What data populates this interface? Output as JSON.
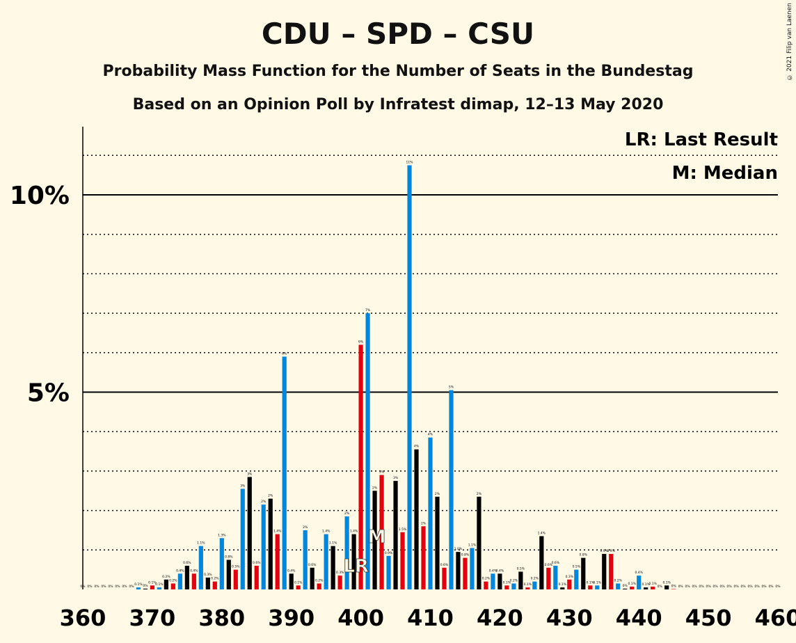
{
  "title": "CDU – SPD – CSU",
  "subtitle": "Probability Mass Function for the Number of Seats in the Bundestag",
  "subtitle2": "Based on an Opinion Poll by Infratest dimap, 12–13 May 2020",
  "copyright": "© 2021 Filip van Laenen",
  "chart_data": {
    "type": "bar",
    "title": "CDU – SPD – CSU",
    "xlabel": "",
    "ylabel": "",
    "xlim": [
      360,
      460
    ],
    "ylim": [
      0,
      11.7
    ],
    "x_ticks": [
      "360",
      "370",
      "380",
      "390",
      "400",
      "410",
      "420",
      "430",
      "440",
      "450",
      "460"
    ],
    "y_ticks": [
      {
        "value": 5,
        "label": "5%"
      },
      {
        "value": 10,
        "label": "10%"
      }
    ],
    "grid": "dotted every 1%, solid at 5% and 10%",
    "legend": [
      {
        "text": "LR: Last Result",
        "position": "top-right"
      },
      {
        "text": "M: Median",
        "position": "top-right"
      }
    ],
    "last_result_seat": 399,
    "median_seat": 402,
    "colors": {
      "blue": "#0087DC",
      "black": "#000000",
      "red": "#E3000F",
      "background": "#FFF9E6"
    },
    "bars": [
      {
        "seat": 360,
        "value": 0,
        "label": "0%",
        "color": "black"
      },
      {
        "seat": 361,
        "value": 0,
        "label": "0%",
        "color": "blue"
      },
      {
        "seat": 362,
        "value": 0,
        "label": "0%",
        "color": "black"
      },
      {
        "seat": 363,
        "value": 0,
        "label": "0%",
        "color": "black"
      },
      {
        "seat": 364,
        "value": 0,
        "label": "0%",
        "color": "black"
      },
      {
        "seat": 365,
        "value": 0,
        "label": "0%",
        "color": "black"
      },
      {
        "seat": 366,
        "value": 0,
        "label": "0%",
        "color": "black"
      },
      {
        "seat": 367,
        "value": 0,
        "label": "0%",
        "color": "black"
      },
      {
        "seat": 368,
        "value": 0.05,
        "label": "0.1%",
        "color": "blue"
      },
      {
        "seat": 369,
        "value": 0.02,
        "label": "0%",
        "color": "black"
      },
      {
        "seat": 370,
        "value": 0.1,
        "label": "0.1%",
        "color": "red"
      },
      {
        "seat": 371,
        "value": 0.05,
        "label": "0.1%",
        "color": "blue"
      },
      {
        "seat": 372,
        "value": 0.25,
        "label": "0.2%",
        "color": "black"
      },
      {
        "seat": 373,
        "value": 0.15,
        "label": "0.2%",
        "color": "red"
      },
      {
        "seat": 374,
        "value": 0.4,
        "label": "0.4%",
        "color": "blue"
      },
      {
        "seat": 375,
        "value": 0.6,
        "label": "0.6%",
        "color": "black"
      },
      {
        "seat": 376,
        "value": 0.4,
        "label": "0.4%",
        "color": "red"
      },
      {
        "seat": 377,
        "value": 1.1,
        "label": "1.1%",
        "color": "blue"
      },
      {
        "seat": 378,
        "value": 0.3,
        "label": "0.3%",
        "color": "black"
      },
      {
        "seat": 379,
        "value": 0.2,
        "label": "0.2%",
        "color": "red"
      },
      {
        "seat": 380,
        "value": 1.3,
        "label": "1.3%",
        "color": "blue"
      },
      {
        "seat": 381,
        "value": 0.75,
        "label": "0.8%",
        "color": "black"
      },
      {
        "seat": 382,
        "value": 0.5,
        "label": "0.5%",
        "color": "red"
      },
      {
        "seat": 383,
        "value": 2.55,
        "label": "3%",
        "color": "blue"
      },
      {
        "seat": 384,
        "value": 2.85,
        "label": "3%",
        "color": "black"
      },
      {
        "seat": 385,
        "value": 0.6,
        "label": "0.6%",
        "color": "red"
      },
      {
        "seat": 386,
        "value": 2.15,
        "label": "2%",
        "color": "blue"
      },
      {
        "seat": 387,
        "value": 2.3,
        "label": "2%",
        "color": "black"
      },
      {
        "seat": 388,
        "value": 1.4,
        "label": "1.4%",
        "color": "red"
      },
      {
        "seat": 389,
        "value": 5.9,
        "label": "6%",
        "color": "blue"
      },
      {
        "seat": 390,
        "value": 0.4,
        "label": "0.4%",
        "color": "black"
      },
      {
        "seat": 391,
        "value": 0.1,
        "label": "0.1%",
        "color": "red"
      },
      {
        "seat": 392,
        "value": 1.5,
        "label": "2%",
        "color": "blue"
      },
      {
        "seat": 393,
        "value": 0.55,
        "label": "0.6%",
        "color": "black"
      },
      {
        "seat": 394,
        "value": 0.15,
        "label": "0.2%",
        "color": "red"
      },
      {
        "seat": 395,
        "value": 1.4,
        "label": "1.4%",
        "color": "blue"
      },
      {
        "seat": 396,
        "value": 1.1,
        "label": "1.1%",
        "color": "black"
      },
      {
        "seat": 397,
        "value": 0.35,
        "label": "0.3%",
        "color": "red"
      },
      {
        "seat": 398,
        "value": 1.85,
        "label": "2%",
        "color": "blue"
      },
      {
        "seat": 399,
        "value": 1.4,
        "label": "1.4%",
        "color": "black"
      },
      {
        "seat": 400,
        "value": 6.2,
        "label": "6%",
        "color": "red"
      },
      {
        "seat": 401,
        "value": 7.0,
        "label": "7%",
        "color": "blue"
      },
      {
        "seat": 402,
        "value": 2.5,
        "label": "2%",
        "color": "black"
      },
      {
        "seat": 403,
        "value": 2.9,
        "label": "3%",
        "color": "red"
      },
      {
        "seat": 404,
        "value": 0.85,
        "label": "0.9%",
        "color": "blue"
      },
      {
        "seat": 405,
        "value": 2.75,
        "label": "3%",
        "color": "black"
      },
      {
        "seat": 406,
        "value": 1.45,
        "label": "1.5%",
        "color": "red"
      },
      {
        "seat": 407,
        "value": 10.75,
        "label": "11%",
        "color": "blue"
      },
      {
        "seat": 408,
        "value": 3.55,
        "label": "4%",
        "color": "black"
      },
      {
        "seat": 409,
        "value": 1.6,
        "label": "2%",
        "color": "red"
      },
      {
        "seat": 410,
        "value": 3.85,
        "label": "4%",
        "color": "blue"
      },
      {
        "seat": 411,
        "value": 2.35,
        "label": "2%",
        "color": "black"
      },
      {
        "seat": 412,
        "value": 0.55,
        "label": "0.6%",
        "color": "red"
      },
      {
        "seat": 413,
        "value": 5.05,
        "label": "5%",
        "color": "blue"
      },
      {
        "seat": 414,
        "value": 0.95,
        "label": "1.0%",
        "color": "black"
      },
      {
        "seat": 415,
        "value": 0.8,
        "label": "0.8%",
        "color": "red"
      },
      {
        "seat": 416,
        "value": 1.05,
        "label": "1.1%",
        "color": "blue"
      },
      {
        "seat": 417,
        "value": 2.35,
        "label": "2%",
        "color": "black"
      },
      {
        "seat": 418,
        "value": 0.2,
        "label": "0.2%",
        "color": "red"
      },
      {
        "seat": 419,
        "value": 0.4,
        "label": "0.4%",
        "color": "blue"
      },
      {
        "seat": 420,
        "value": 0.4,
        "label": "0.4%",
        "color": "black"
      },
      {
        "seat": 421,
        "value": 0.1,
        "label": "0.1%",
        "color": "red"
      },
      {
        "seat": 422,
        "value": 0.15,
        "label": "0.2%",
        "color": "blue"
      },
      {
        "seat": 423,
        "value": 0.45,
        "label": "0.5%",
        "color": "black"
      },
      {
        "seat": 424,
        "value": 0.05,
        "label": "0.1%",
        "color": "red"
      },
      {
        "seat": 425,
        "value": 0.2,
        "label": "0.2%",
        "color": "blue"
      },
      {
        "seat": 426,
        "value": 1.35,
        "label": "1.4%",
        "color": "black"
      },
      {
        "seat": 427,
        "value": 0.55,
        "label": "0.6%",
        "color": "red"
      },
      {
        "seat": 428,
        "value": 0.6,
        "label": "0.6%",
        "color": "blue"
      },
      {
        "seat": 429,
        "value": 0.05,
        "label": "0.1%",
        "color": "black"
      },
      {
        "seat": 430,
        "value": 0.25,
        "label": "0.3%",
        "color": "red"
      },
      {
        "seat": 431,
        "value": 0.5,
        "label": "0.5%",
        "color": "blue"
      },
      {
        "seat": 432,
        "value": 0.8,
        "label": "0.8%",
        "color": "black"
      },
      {
        "seat": 433,
        "value": 0.1,
        "label": "0.1%",
        "color": "red"
      },
      {
        "seat": 434,
        "value": 0.1,
        "label": "0.1%",
        "color": "blue"
      },
      {
        "seat": 435,
        "value": 0.9,
        "label": "0.9%",
        "color": "black"
      },
      {
        "seat": 436,
        "value": 0.9,
        "label": "0.9%",
        "color": "red"
      },
      {
        "seat": 437,
        "value": 0.15,
        "label": "0.2%",
        "color": "blue"
      },
      {
        "seat": 438,
        "value": 0.02,
        "label": "0%",
        "color": "black"
      },
      {
        "seat": 439,
        "value": 0.07,
        "label": "0.1%",
        "color": "red"
      },
      {
        "seat": 440,
        "value": 0.35,
        "label": "0.4%",
        "color": "blue"
      },
      {
        "seat": 441,
        "value": 0.05,
        "label": "0.1%",
        "color": "black"
      },
      {
        "seat": 442,
        "value": 0.07,
        "label": "0.1%",
        "color": "red"
      },
      {
        "seat": 443,
        "value": 0,
        "label": "0%",
        "color": "blue"
      },
      {
        "seat": 444,
        "value": 0.1,
        "label": "0.1%",
        "color": "black"
      },
      {
        "seat": 445,
        "value": 0.01,
        "label": "0%",
        "color": "red"
      },
      {
        "seat": 446,
        "value": 0,
        "label": "0%",
        "color": "blue"
      },
      {
        "seat": 447,
        "value": 0,
        "label": "0%",
        "color": "black"
      },
      {
        "seat": 448,
        "value": 0,
        "label": "0%",
        "color": "black"
      },
      {
        "seat": 449,
        "value": 0,
        "label": "0%",
        "color": "black"
      },
      {
        "seat": 450,
        "value": 0,
        "label": "0%",
        "color": "black"
      },
      {
        "seat": 451,
        "value": 0,
        "label": "0%",
        "color": "black"
      },
      {
        "seat": 452,
        "value": 0,
        "label": "0%",
        "color": "black"
      },
      {
        "seat": 453,
        "value": 0,
        "label": "0%",
        "color": "black"
      },
      {
        "seat": 454,
        "value": 0,
        "label": "0%",
        "color": "black"
      },
      {
        "seat": 455,
        "value": 0,
        "label": "0%",
        "color": "black"
      },
      {
        "seat": 456,
        "value": 0,
        "label": "0%",
        "color": "black"
      },
      {
        "seat": 457,
        "value": 0,
        "label": "0%",
        "color": "black"
      },
      {
        "seat": 458,
        "value": 0,
        "label": "0%",
        "color": "black"
      },
      {
        "seat": 459,
        "value": 0,
        "label": "0%",
        "color": "black"
      },
      {
        "seat": 460,
        "value": 0,
        "label": "0%",
        "color": "black"
      }
    ]
  }
}
